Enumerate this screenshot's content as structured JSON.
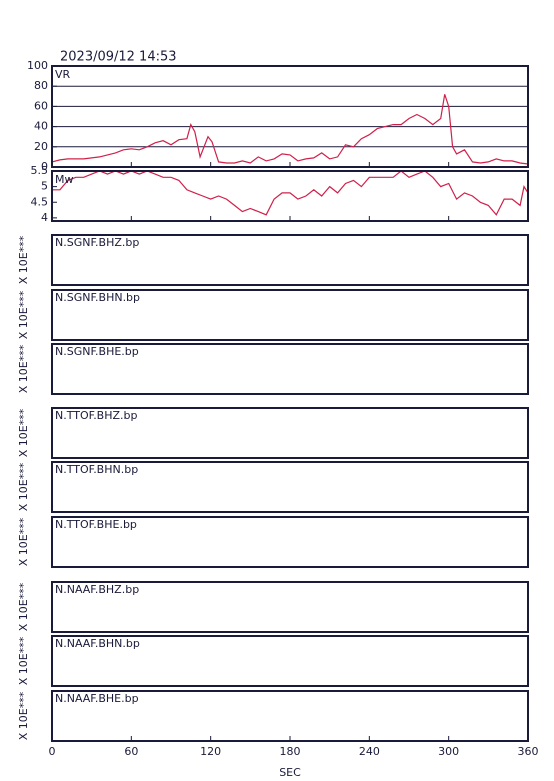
{
  "timestamp": "2023/09/12  14:53",
  "chart_data": [
    {
      "type": "line",
      "label": "VR",
      "color": "#d0204a",
      "grid": true,
      "x": [
        0,
        6,
        12,
        18,
        24,
        30,
        36,
        42,
        48,
        54,
        60,
        66,
        72,
        78,
        84,
        90,
        96,
        102,
        105,
        108,
        112,
        118,
        121,
        126,
        132,
        138,
        144,
        150,
        156,
        162,
        168,
        174,
        180,
        186,
        192,
        198,
        204,
        210,
        216,
        222,
        228,
        234,
        240,
        246,
        252,
        258,
        264,
        270,
        276,
        282,
        288,
        294,
        297,
        300,
        303,
        306,
        312,
        318,
        324,
        330,
        336,
        342,
        348,
        354,
        360
      ],
      "values": [
        5,
        7,
        8,
        8,
        8,
        9,
        10,
        12,
        14,
        17,
        18,
        17,
        20,
        24,
        26,
        22,
        27,
        28,
        42,
        35,
        10,
        30,
        25,
        5,
        4,
        4,
        6,
        4,
        10,
        6,
        8,
        13,
        12,
        6,
        8,
        9,
        14,
        8,
        10,
        22,
        20,
        28,
        32,
        38,
        40,
        42,
        42,
        48,
        52,
        48,
        42,
        48,
        72,
        60,
        20,
        13,
        17,
        5,
        4,
        5,
        8,
        6,
        6,
        4,
        3
      ],
      "ylim": [
        0,
        100
      ],
      "yticks": [
        0,
        20,
        40,
        60,
        80,
        100
      ]
    },
    {
      "type": "line",
      "label": "Mw",
      "color": "#d0204a",
      "grid": false,
      "x": [
        0,
        6,
        12,
        18,
        24,
        30,
        36,
        42,
        48,
        54,
        60,
        66,
        72,
        78,
        84,
        90,
        96,
        102,
        108,
        114,
        120,
        126,
        132,
        138,
        144,
        150,
        156,
        162,
        168,
        174,
        180,
        186,
        192,
        198,
        204,
        210,
        216,
        222,
        228,
        234,
        240,
        246,
        252,
        258,
        264,
        270,
        276,
        282,
        288,
        294,
        300,
        306,
        312,
        318,
        324,
        330,
        336,
        342,
        348,
        354,
        357,
        360
      ],
      "values": [
        4.9,
        4.9,
        5.2,
        5.3,
        5.3,
        5.4,
        5.5,
        5.4,
        5.5,
        5.4,
        5.5,
        5.4,
        5.5,
        5.4,
        5.3,
        5.3,
        5.2,
        4.9,
        4.8,
        4.7,
        4.6,
        4.7,
        4.6,
        4.4,
        4.2,
        4.3,
        4.2,
        4.1,
        4.6,
        4.8,
        4.8,
        4.6,
        4.7,
        4.9,
        4.7,
        5.0,
        4.8,
        5.1,
        5.2,
        5.0,
        5.3,
        5.3,
        5.3,
        5.3,
        5.5,
        5.3,
        5.4,
        5.5,
        5.3,
        5.0,
        5.1,
        4.6,
        4.8,
        4.7,
        4.5,
        4.4,
        4.1,
        4.6,
        4.6,
        4.4,
        5.0,
        4.8
      ],
      "ylim": [
        3.9,
        5.5
      ],
      "yticks": [
        4.0,
        4.5,
        5.0,
        5.5
      ]
    }
  ],
  "x_axis": {
    "label": "SEC",
    "xlim": [
      0,
      360
    ],
    "xticks": [
      0,
      60,
      120,
      180,
      240,
      300,
      360
    ]
  },
  "panels": [
    {
      "label": "N.SGNF.BHZ.bp",
      "scale": "X 10E***"
    },
    {
      "label": "N.SGNF.BHN.bp",
      "scale": "X 10E***"
    },
    {
      "label": "N.SGNF.BHE.bp",
      "scale": "X 10E***"
    },
    {
      "label": "N.TTOF.BHZ.bp",
      "scale": "X 10E***"
    },
    {
      "label": "N.TTOF.BHN.bp",
      "scale": "X 10E***"
    },
    {
      "label": "N.TTOF.BHE.bp",
      "scale": "X 10E***"
    },
    {
      "label": "N.NAAF.BHZ.bp",
      "scale": "X 10E***"
    },
    {
      "label": "N.NAAF.BHN.bp",
      "scale": "X 10E***"
    },
    {
      "label": "N.NAAF.BHE.bp",
      "scale": "X 10E***"
    }
  ]
}
